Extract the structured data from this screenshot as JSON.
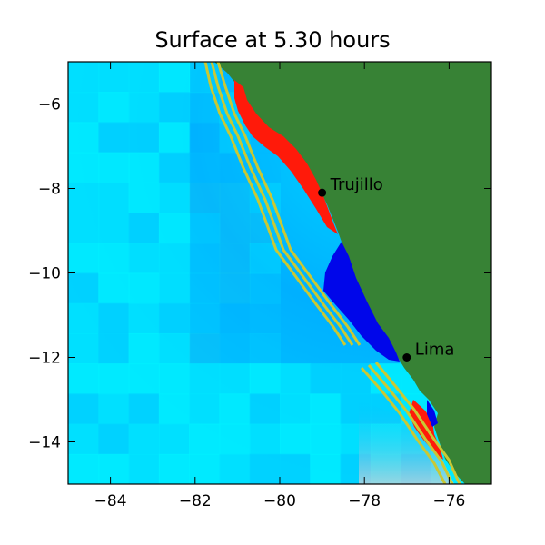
{
  "chart_data": {
    "type": "heatmap",
    "title": "Surface at 5.30 hours",
    "xlabel": "",
    "ylabel": "",
    "xlim": [
      -85,
      -75
    ],
    "ylim": [
      -15,
      -5
    ],
    "x_ticks": [
      -84,
      -82,
      -80,
      -78,
      -76
    ],
    "y_ticks": [
      -6,
      -8,
      -10,
      -12,
      -14
    ],
    "grid": false,
    "colors": {
      "ocean_deep": "#00b8ff",
      "ocean_light": "#00f2ff",
      "land": "#378235",
      "positive": "#ff1a0a",
      "negative": "#0006ea",
      "fault_lines": "#c9c834"
    },
    "cities": [
      {
        "name": "Trujillo",
        "lon": -79.0,
        "lat": -8.1
      },
      {
        "name": "Lima",
        "lon": -77.0,
        "lat": -12.0
      }
    ]
  }
}
